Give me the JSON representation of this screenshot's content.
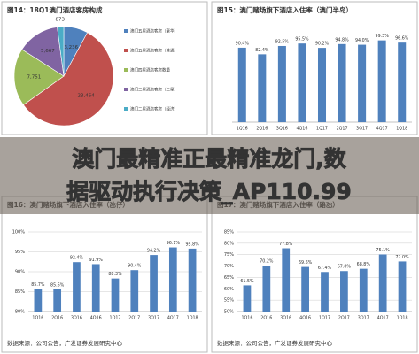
{
  "headline": [
    "澳门最精准正最精准龙门,数",
    "据驱动执行决策_AP110.99"
  ],
  "chart_data": [
    {
      "type": "pie",
      "title": "图14：18Q1澳门酒店客房构成",
      "categories": [
        "澳门五星酒店客房（豪华）",
        "澳门五星酒店客房（普通）",
        "澳门四星酒店客房数量",
        "澳门三星酒店客房（二星）",
        "澳门二星酒店客房（经济）"
      ],
      "values": [
        3236,
        23464,
        7751,
        5667,
        873
      ],
      "value_labels": [
        "3,236",
        "23,464",
        "7,751",
        "5,667",
        "873"
      ],
      "colors": [
        "#4f81bd",
        "#c0504d",
        "#9bbb59",
        "#8064a2",
        "#4bacc6"
      ]
    },
    {
      "type": "bar",
      "title": "图15：澳门赌场旗下酒店入住率（澳门半岛）",
      "categories": [
        "1Q16",
        "2Q16",
        "3Q16",
        "4Q16",
        "1Q17",
        "2Q17",
        "3Q17",
        "4Q17",
        "1Q18"
      ],
      "values": [
        90.4,
        82.4,
        92.5,
        95.5,
        90.2,
        94.8,
        94.0,
        99.3,
        96.6
      ],
      "value_labels": [
        "90.4%",
        "82.4%",
        "92.5%",
        "95.5%",
        "90.2%",
        "94.8%",
        "94.0%",
        "99.3%",
        "96.6%"
      ],
      "color": "#4f81bd",
      "ylim": [
        0,
        100
      ]
    },
    {
      "type": "bar",
      "title": "图16：澳门赌场旗下酒店入住率（氹仔）",
      "categories": [
        "1Q16",
        "2Q16",
        "3Q16",
        "4Q16",
        "1Q17",
        "2Q17",
        "3Q17",
        "4Q17",
        "1Q18"
      ],
      "values": [
        85.7,
        85.6,
        92.4,
        91.9,
        88.3,
        90.4,
        94.2,
        96.1,
        95.8
      ],
      "value_labels": [
        "85.7%",
        "85.6%",
        "92.4%",
        "91.9%",
        "88.3%",
        "90.4%",
        "94.2%",
        "96.1%",
        "95.8%"
      ],
      "color": "#4f81bd",
      "ylim": [
        80,
        100
      ],
      "yticks": [
        {
          "value": 80,
          "label": "80%"
        },
        {
          "value": 85,
          "label": "85%"
        },
        {
          "value": 90,
          "label": "90%"
        },
        {
          "value": 95,
          "label": "95%"
        },
        {
          "value": 100,
          "label": "100%"
        }
      ],
      "grid": true,
      "source": "数据来源：公司公告，广发证券发展研究中心"
    },
    {
      "type": "bar",
      "title": "图17：澳门赌场旗下酒店入住率（路氹）",
      "categories": [
        "1Q16",
        "2Q16",
        "3Q16",
        "4Q16",
        "1Q17",
        "2Q17",
        "3Q17",
        "4Q17",
        "1Q18"
      ],
      "values": [
        61.5,
        70.2,
        77.8,
        69.6,
        67.4,
        67.8,
        68.8,
        75.1,
        72.0
      ],
      "value_labels": [
        "61.5%",
        "70.2%",
        "77.8%",
        "69.6%",
        "67.4%",
        "67.8%",
        "68.8%",
        "75.1%",
        "72.0%"
      ],
      "color": "#4f81bd",
      "ylim": [
        50,
        85
      ],
      "yticks": [
        {
          "value": 50,
          "label": "50%"
        },
        {
          "value": 55,
          "label": "55%"
        },
        {
          "value": 60,
          "label": "60%"
        },
        {
          "value": 65,
          "label": "65%"
        },
        {
          "value": 70,
          "label": "70%"
        },
        {
          "value": 75,
          "label": "75%"
        },
        {
          "value": 80,
          "label": "80%"
        },
        {
          "value": 85,
          "label": "85%"
        }
      ],
      "grid": true,
      "source": "数据来源：公司公告，广发证券发展研究中心"
    }
  ]
}
